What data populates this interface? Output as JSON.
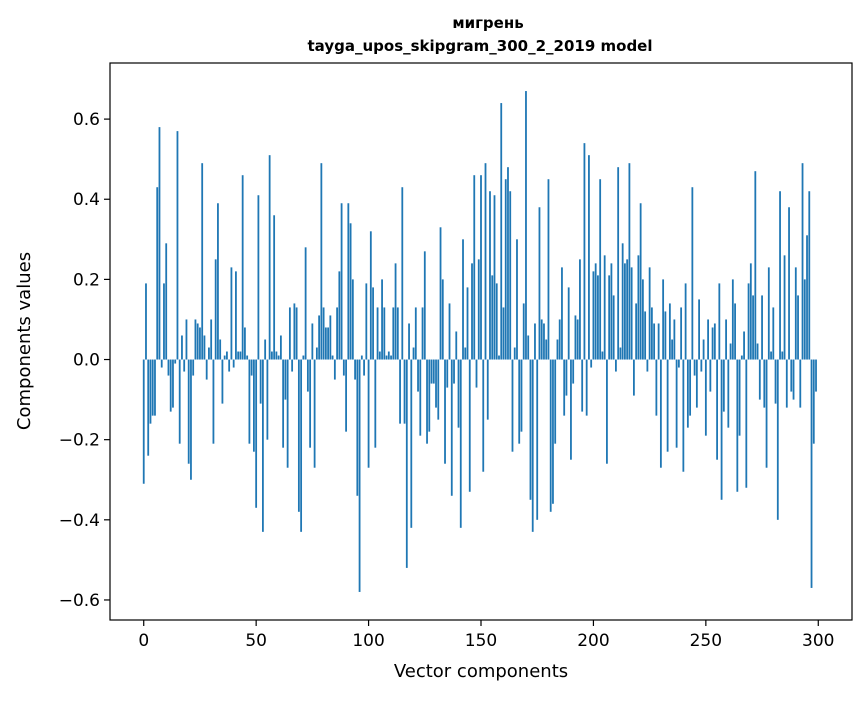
{
  "chart_data": {
    "type": "bar",
    "title": "мигрень",
    "subtitle": "tayga_upos_skipgram_300_2_2019 model",
    "xlabel": "Vector components",
    "ylabel": "Components values",
    "xlim": [
      -15,
      315
    ],
    "ylim": [
      -0.65,
      0.74
    ],
    "xticks": [
      0,
      50,
      100,
      150,
      200,
      250,
      300
    ],
    "yticks": [
      -0.6,
      -0.4,
      -0.2,
      0.0,
      0.2,
      0.4,
      0.6
    ],
    "ytick_labels": [
      "−0.6",
      "−0.4",
      "−0.2",
      "0.0",
      "0.2",
      "0.4",
      "0.6"
    ],
    "bar_color": "#1f77b4",
    "grid": false,
    "legend": "none",
    "x": "0..299 (one bar per vector component)",
    "values": [
      -0.31,
      0.19,
      -0.24,
      -0.16,
      -0.14,
      -0.14,
      0.43,
      0.58,
      -0.02,
      0.19,
      0.29,
      -0.04,
      -0.13,
      -0.12,
      -0.01,
      0.57,
      -0.21,
      0.06,
      -0.03,
      0.1,
      -0.26,
      -0.3,
      -0.04,
      0.1,
      0.09,
      0.08,
      0.49,
      0.06,
      -0.05,
      0.03,
      0.1,
      -0.21,
      0.25,
      0.39,
      0.05,
      -0.11,
      0.01,
      0.02,
      -0.03,
      0.23,
      -0.02,
      0.22,
      0.02,
      0.02,
      0.46,
      0.08,
      0.01,
      -0.21,
      -0.04,
      -0.23,
      -0.37,
      0.41,
      -0.11,
      -0.43,
      0.05,
      -0.2,
      0.51,
      0.02,
      0.36,
      0.02,
      0.01,
      0.06,
      -0.22,
      -0.1,
      -0.27,
      0.13,
      -0.03,
      0.14,
      0.13,
      -0.38,
      -0.43,
      0.01,
      0.28,
      -0.08,
      -0.22,
      0.09,
      -0.27,
      0.03,
      0.11,
      0.49,
      0.13,
      0.08,
      0.08,
      0.11,
      0.01,
      -0.05,
      0.13,
      0.22,
      0.39,
      -0.04,
      -0.18,
      0.39,
      0.34,
      0.2,
      -0.05,
      -0.34,
      -0.58,
      0.01,
      -0.04,
      0.19,
      -0.27,
      0.32,
      0.18,
      -0.22,
      0.13,
      0.02,
      0.2,
      0.13,
      0.01,
      0.02,
      0.01,
      0.13,
      0.24,
      0.13,
      -0.16,
      0.43,
      -0.16,
      -0.52,
      0.09,
      -0.42,
      0.03,
      0.13,
      -0.08,
      -0.19,
      0.13,
      0.27,
      -0.21,
      -0.18,
      -0.06,
      -0.06,
      -0.12,
      -0.15,
      0.33,
      0.2,
      -0.26,
      -0.07,
      0.14,
      -0.34,
      -0.06,
      0.07,
      -0.17,
      -0.42,
      0.3,
      0.03,
      0.18,
      -0.33,
      0.24,
      0.46,
      -0.07,
      0.25,
      0.46,
      -0.28,
      0.49,
      -0.15,
      0.42,
      0.21,
      0.41,
      0.19,
      0.01,
      0.64,
      0.13,
      0.45,
      0.48,
      0.42,
      -0.23,
      0.03,
      0.3,
      -0.21,
      -0.18,
      0.14,
      0.67,
      0.06,
      -0.35,
      -0.43,
      0.09,
      -0.4,
      0.38,
      0.1,
      0.09,
      0.05,
      0.45,
      -0.38,
      -0.36,
      -0.21,
      0.05,
      0.1,
      0.23,
      -0.14,
      -0.09,
      0.18,
      -0.25,
      -0.06,
      0.11,
      0.1,
      0.25,
      -0.13,
      0.54,
      -0.14,
      0.51,
      -0.02,
      0.22,
      0.24,
      0.21,
      0.45,
      0.02,
      0.26,
      -0.26,
      0.21,
      0.24,
      0.16,
      -0.03,
      0.48,
      0.03,
      0.29,
      0.24,
      0.25,
      0.49,
      0.23,
      -0.09,
      0.14,
      0.26,
      0.39,
      0.2,
      0.12,
      -0.03,
      0.23,
      0.13,
      0.09,
      -0.14,
      0.09,
      -0.27,
      0.2,
      0.12,
      -0.23,
      0.14,
      0.05,
      0.1,
      -0.22,
      -0.02,
      0.13,
      -0.28,
      0.19,
      -0.17,
      -0.14,
      0.43,
      -0.04,
      -0.12,
      0.15,
      -0.03,
      0.05,
      -0.19,
      0.1,
      -0.08,
      0.08,
      0.09,
      -0.25,
      0.19,
      -0.35,
      -0.13,
      0.1,
      -0.17,
      0.04,
      0.2,
      0.14,
      -0.33,
      -0.19,
      0.01,
      0.07,
      -0.32,
      0.19,
      0.24,
      0.16,
      0.47,
      0.04,
      -0.1,
      0.16,
      -0.12,
      -0.27,
      0.23,
      0.02,
      0.13,
      -0.11,
      -0.4,
      0.42,
      0.02,
      0.26,
      -0.12,
      0.38,
      -0.08,
      -0.1,
      0.23,
      0.16,
      -0.12,
      0.49,
      0.2,
      0.31,
      0.42,
      -0.57,
      -0.21,
      -0.08
    ]
  }
}
